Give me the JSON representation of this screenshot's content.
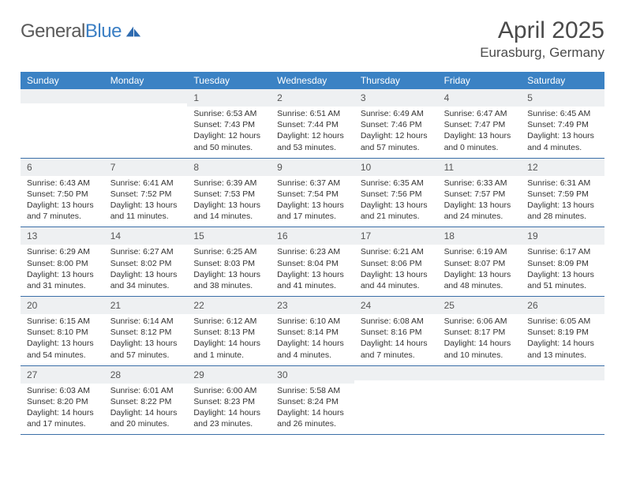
{
  "colors": {
    "header_bar": "#3b82c4",
    "daynum_bg": "#eef0f2",
    "week_border": "#3b6fa8",
    "text": "#333333",
    "title_text": "#4a4a4a",
    "logo_gray": "#5a5a5a",
    "logo_blue": "#3b7fc4",
    "background": "#ffffff"
  },
  "fonts": {
    "family": "Arial",
    "title_size_pt": 22,
    "location_size_pt": 13,
    "dow_size_pt": 9,
    "daynum_size_pt": 9,
    "body_size_pt": 8
  },
  "logo": {
    "text1": "General",
    "text2": "Blue"
  },
  "title": "April 2025",
  "location": "Eurasburg, Germany",
  "dow": [
    "Sunday",
    "Monday",
    "Tuesday",
    "Wednesday",
    "Thursday",
    "Friday",
    "Saturday"
  ],
  "labels": {
    "sunrise": "Sunrise:",
    "sunset": "Sunset:",
    "daylight": "Daylight:"
  },
  "grid": {
    "columns": 7,
    "rows": 5,
    "first_day_column_index": 2
  },
  "days": [
    {
      "n": 1,
      "sunrise": "6:53 AM",
      "sunset": "7:43 PM",
      "daylight": "12 hours and 50 minutes."
    },
    {
      "n": 2,
      "sunrise": "6:51 AM",
      "sunset": "7:44 PM",
      "daylight": "12 hours and 53 minutes."
    },
    {
      "n": 3,
      "sunrise": "6:49 AM",
      "sunset": "7:46 PM",
      "daylight": "12 hours and 57 minutes."
    },
    {
      "n": 4,
      "sunrise": "6:47 AM",
      "sunset": "7:47 PM",
      "daylight": "13 hours and 0 minutes."
    },
    {
      "n": 5,
      "sunrise": "6:45 AM",
      "sunset": "7:49 PM",
      "daylight": "13 hours and 4 minutes."
    },
    {
      "n": 6,
      "sunrise": "6:43 AM",
      "sunset": "7:50 PM",
      "daylight": "13 hours and 7 minutes."
    },
    {
      "n": 7,
      "sunrise": "6:41 AM",
      "sunset": "7:52 PM",
      "daylight": "13 hours and 11 minutes."
    },
    {
      "n": 8,
      "sunrise": "6:39 AM",
      "sunset": "7:53 PM",
      "daylight": "13 hours and 14 minutes."
    },
    {
      "n": 9,
      "sunrise": "6:37 AM",
      "sunset": "7:54 PM",
      "daylight": "13 hours and 17 minutes."
    },
    {
      "n": 10,
      "sunrise": "6:35 AM",
      "sunset": "7:56 PM",
      "daylight": "13 hours and 21 minutes."
    },
    {
      "n": 11,
      "sunrise": "6:33 AM",
      "sunset": "7:57 PM",
      "daylight": "13 hours and 24 minutes."
    },
    {
      "n": 12,
      "sunrise": "6:31 AM",
      "sunset": "7:59 PM",
      "daylight": "13 hours and 28 minutes."
    },
    {
      "n": 13,
      "sunrise": "6:29 AM",
      "sunset": "8:00 PM",
      "daylight": "13 hours and 31 minutes."
    },
    {
      "n": 14,
      "sunrise": "6:27 AM",
      "sunset": "8:02 PM",
      "daylight": "13 hours and 34 minutes."
    },
    {
      "n": 15,
      "sunrise": "6:25 AM",
      "sunset": "8:03 PM",
      "daylight": "13 hours and 38 minutes."
    },
    {
      "n": 16,
      "sunrise": "6:23 AM",
      "sunset": "8:04 PM",
      "daylight": "13 hours and 41 minutes."
    },
    {
      "n": 17,
      "sunrise": "6:21 AM",
      "sunset": "8:06 PM",
      "daylight": "13 hours and 44 minutes."
    },
    {
      "n": 18,
      "sunrise": "6:19 AM",
      "sunset": "8:07 PM",
      "daylight": "13 hours and 48 minutes."
    },
    {
      "n": 19,
      "sunrise": "6:17 AM",
      "sunset": "8:09 PM",
      "daylight": "13 hours and 51 minutes."
    },
    {
      "n": 20,
      "sunrise": "6:15 AM",
      "sunset": "8:10 PM",
      "daylight": "13 hours and 54 minutes."
    },
    {
      "n": 21,
      "sunrise": "6:14 AM",
      "sunset": "8:12 PM",
      "daylight": "13 hours and 57 minutes."
    },
    {
      "n": 22,
      "sunrise": "6:12 AM",
      "sunset": "8:13 PM",
      "daylight": "14 hours and 1 minute."
    },
    {
      "n": 23,
      "sunrise": "6:10 AM",
      "sunset": "8:14 PM",
      "daylight": "14 hours and 4 minutes."
    },
    {
      "n": 24,
      "sunrise": "6:08 AM",
      "sunset": "8:16 PM",
      "daylight": "14 hours and 7 minutes."
    },
    {
      "n": 25,
      "sunrise": "6:06 AM",
      "sunset": "8:17 PM",
      "daylight": "14 hours and 10 minutes."
    },
    {
      "n": 26,
      "sunrise": "6:05 AM",
      "sunset": "8:19 PM",
      "daylight": "14 hours and 13 minutes."
    },
    {
      "n": 27,
      "sunrise": "6:03 AM",
      "sunset": "8:20 PM",
      "daylight": "14 hours and 17 minutes."
    },
    {
      "n": 28,
      "sunrise": "6:01 AM",
      "sunset": "8:22 PM",
      "daylight": "14 hours and 20 minutes."
    },
    {
      "n": 29,
      "sunrise": "6:00 AM",
      "sunset": "8:23 PM",
      "daylight": "14 hours and 23 minutes."
    },
    {
      "n": 30,
      "sunrise": "5:58 AM",
      "sunset": "8:24 PM",
      "daylight": "14 hours and 26 minutes."
    }
  ]
}
